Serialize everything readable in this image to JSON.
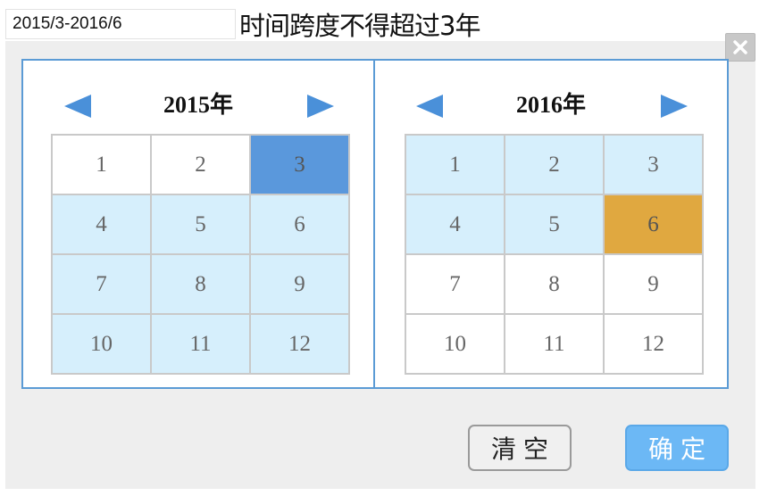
{
  "range_input": {
    "value": "2015/3-2016/6"
  },
  "hint": "时间跨度不得超过3年",
  "left_panel": {
    "year_label": "2015年",
    "months": [
      {
        "label": "1",
        "state": "normal"
      },
      {
        "label": "2",
        "state": "normal"
      },
      {
        "label": "3",
        "state": "start"
      },
      {
        "label": "4",
        "state": "in-range"
      },
      {
        "label": "5",
        "state": "in-range"
      },
      {
        "label": "6",
        "state": "in-range"
      },
      {
        "label": "7",
        "state": "in-range"
      },
      {
        "label": "8",
        "state": "in-range"
      },
      {
        "label": "9",
        "state": "in-range"
      },
      {
        "label": "10",
        "state": "in-range"
      },
      {
        "label": "11",
        "state": "in-range"
      },
      {
        "label": "12",
        "state": "in-range"
      }
    ]
  },
  "right_panel": {
    "year_label": "2016年",
    "months": [
      {
        "label": "1",
        "state": "in-range"
      },
      {
        "label": "2",
        "state": "in-range"
      },
      {
        "label": "3",
        "state": "in-range"
      },
      {
        "label": "4",
        "state": "in-range"
      },
      {
        "label": "5",
        "state": "in-range"
      },
      {
        "label": "6",
        "state": "end"
      },
      {
        "label": "7",
        "state": "normal"
      },
      {
        "label": "8",
        "state": "normal"
      },
      {
        "label": "9",
        "state": "normal"
      },
      {
        "label": "10",
        "state": "normal"
      },
      {
        "label": "11",
        "state": "normal"
      },
      {
        "label": "12",
        "state": "normal"
      }
    ]
  },
  "buttons": {
    "clear_label": "清空",
    "confirm_label": "确定"
  },
  "icons": {
    "prev": "triangle-left-icon",
    "next": "triangle-right-icon",
    "close": "close-icon"
  },
  "colors": {
    "start_month": "#5a98dc",
    "end_month": "#e0a840",
    "in_range": "#d6effc",
    "panel_border": "#5b9bd5",
    "confirm_button": "#6cb8f5",
    "nav_arrow": "#4a90d9"
  }
}
